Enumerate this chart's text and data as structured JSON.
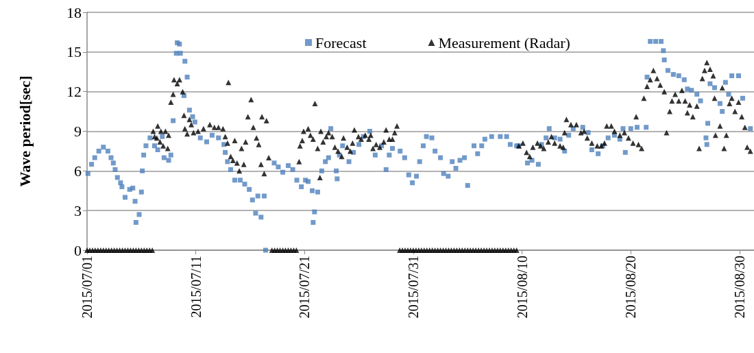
{
  "chart_data": {
    "type": "scatter",
    "ylabel": "Wave period[sec]",
    "xlim": [
      "2015-07-01",
      "2015-08-31T08:00"
    ],
    "xticks": [
      {
        "value": "2015-07-01",
        "label": "2015/07/01"
      },
      {
        "value": "2015-07-11",
        "label": "2015/07/11"
      },
      {
        "value": "2015-07-21",
        "label": "2015/07/21"
      },
      {
        "value": "2015-07-31",
        "label": "2015/07/31"
      },
      {
        "value": "2015-08-10",
        "label": "2015/08/10"
      },
      {
        "value": "2015-08-20",
        "label": "2015/08/20"
      },
      {
        "value": "2015-08-30",
        "label": "2015/08/30"
      }
    ],
    "ylim": [
      0,
      18
    ],
    "yticks": [
      0,
      3,
      6,
      9,
      12,
      15,
      18
    ],
    "grid": "y",
    "legend": "top",
    "series": [
      {
        "name": "Forecast",
        "color": "#4f81bd",
        "marker": "square",
        "x": [
          "2015-07-01T02:00",
          "2015-07-01T10:00",
          "2015-07-01T17:00",
          "2015-07-02T02:00",
          "2015-07-02T12:00",
          "2015-07-02T22:00",
          "2015-07-03T05:00",
          "2015-07-03T10:00",
          "2015-07-03T14:00",
          "2015-07-03T19:00",
          "2015-07-04T02:00",
          "2015-07-04T05:00",
          "2015-07-04T12:00",
          "2015-07-04T22:00",
          "2015-07-05T05:00",
          "2015-07-05T10:00",
          "2015-07-05T12:00",
          "2015-07-05T19:00",
          "2015-07-06T00:00",
          "2015-07-06T02:00",
          "2015-07-06T05:00",
          "2015-07-06T10:00",
          "2015-07-06T19:00",
          "2015-07-07T05:00",
          "2015-07-07T12:00",
          "2015-07-07T22:00",
          "2015-07-08T02:00",
          "2015-07-08T12:00",
          "2015-07-08T17:00",
          "2015-07-08T22:00",
          "2015-07-09T05:00",
          "2015-07-09T07:00",
          "2015-07-09T12:00",
          "2015-07-09T14:00",
          "2015-07-09T22:00",
          "2015-07-10T00:00",
          "2015-07-10T05:00",
          "2015-07-10T10:00",
          "2015-07-10T17:00",
          "2015-07-10T22:00",
          "2015-07-11T10:00",
          "2015-07-12T00:00",
          "2015-07-12T12:00",
          "2015-07-13T02:00",
          "2015-07-13T14:00",
          "2015-07-13T17:00",
          "2015-07-13T22:00",
          "2015-07-14T05:00",
          "2015-07-14T14:00",
          "2015-07-15T02:00",
          "2015-07-15T12:00",
          "2015-07-15T22:00",
          "2015-07-16T05:00",
          "2015-07-16T12:00",
          "2015-07-16T17:00",
          "2015-07-17T00:00",
          "2015-07-17T07:00",
          "2015-07-17T10:00",
          "2015-07-18T05:00",
          "2015-07-18T14:00",
          "2015-07-19T00:00",
          "2015-07-19T12:00",
          "2015-07-19T22:00",
          "2015-07-20T07:00",
          "2015-07-20T17:00",
          "2015-07-21T02:00",
          "2015-07-21T08:00",
          "2015-07-21T17:00",
          "2015-07-21T19:00",
          "2015-07-21T22:00",
          "2015-07-22T05:00",
          "2015-07-22T14:00",
          "2015-07-22T22:00",
          "2015-07-23T05:00",
          "2015-07-23T10:00",
          "2015-07-23T22:00",
          "2015-07-24T00:00",
          "2015-07-24T05:00",
          "2015-07-24T12:00",
          "2015-07-25T02:00",
          "2015-07-25T12:00",
          "2015-07-26T00:00",
          "2015-07-26T10:00",
          "2015-07-27T00:00",
          "2015-07-27T12:00",
          "2015-07-28T02:00",
          "2015-07-28T12:00",
          "2015-07-28T19:00",
          "2015-07-29T02:00",
          "2015-07-29T19:00",
          "2015-07-30T05:00",
          "2015-07-30T14:00",
          "2015-07-30T22:00",
          "2015-07-31T07:00",
          "2015-07-31T14:00",
          "2015-07-31T22:00",
          "2015-08-01T05:00",
          "2015-08-01T17:00",
          "2015-08-02T00:00",
          "2015-08-02T12:00",
          "2015-08-02T19:00",
          "2015-08-03T05:00",
          "2015-08-03T14:00",
          "2015-08-03T22:00",
          "2015-08-04T07:00",
          "2015-08-04T17:00",
          "2015-08-05T00:00",
          "2015-08-05T14:00",
          "2015-08-05T22:00",
          "2015-08-06T07:00",
          "2015-08-06T14:00",
          "2015-08-07T05:00",
          "2015-08-08T00:00",
          "2015-08-08T14:00",
          "2015-08-08T22:00",
          "2015-08-09T12:00",
          "2015-08-09T17:00",
          "2015-08-10T12:00",
          "2015-08-10T22:00",
          "2015-08-11T12:00",
          "2015-08-11T19:00",
          "2015-08-12T05:00",
          "2015-08-12T12:00",
          "2015-08-13T00:00",
          "2015-08-13T12:00",
          "2015-08-13T22:00",
          "2015-08-14T07:00",
          "2015-08-14T17:00",
          "2015-08-15T14:00",
          "2015-08-16T02:00",
          "2015-08-16T10:00",
          "2015-08-17T00:00",
          "2015-08-17T10:00",
          "2015-08-17T22:00",
          "2015-08-18T12:00",
          "2015-08-19T00:00",
          "2015-08-19T07:00",
          "2015-08-19T12:00",
          "2015-08-20T00:00",
          "2015-08-20T14:00",
          "2015-08-21T10:00",
          "2015-08-21T12:00",
          "2015-08-21T19:00",
          "2015-08-22T07:00",
          "2015-08-22T19:00",
          "2015-08-23T00:00",
          "2015-08-23T02:00",
          "2015-08-23T10:00",
          "2015-08-23T22:00",
          "2015-08-24T10:00",
          "2015-08-24T22:00",
          "2015-08-25T05:00",
          "2015-08-25T14:00",
          "2015-08-26T02:00",
          "2015-08-26T10:00",
          "2015-08-26T22:00",
          "2015-08-27T00:00",
          "2015-08-27T02:00",
          "2015-08-27T07:00",
          "2015-08-27T17:00",
          "2015-08-28T05:00",
          "2015-08-28T10:00",
          "2015-08-28T17:00",
          "2015-08-29T00:00",
          "2015-08-29T07:00",
          "2015-08-29T22:00",
          "2015-08-30T07:00",
          "2015-08-31T00:00"
        ],
        "values": [
          5.8,
          6.5,
          7.0,
          7.5,
          7.8,
          7.5,
          7.0,
          6.6,
          6.1,
          5.5,
          5.1,
          4.8,
          4.0,
          4.6,
          4.7,
          3.7,
          2.1,
          2.7,
          4.4,
          6.0,
          7.2,
          7.9,
          8.5,
          7.9,
          7.6,
          8.6,
          7.0,
          6.8,
          7.2,
          9.8,
          14.9,
          15.7,
          15.6,
          14.9,
          11.7,
          14.3,
          13.1,
          10.6,
          10.1,
          9.7,
          8.5,
          8.2,
          8.7,
          8.5,
          8.0,
          7.4,
          6.7,
          6.1,
          5.3,
          5.3,
          5.0,
          4.6,
          3.8,
          2.8,
          4.1,
          2.5,
          4.1,
          0,
          6.6,
          6.3,
          5.9,
          6.4,
          6.1,
          5.3,
          4.8,
          5.3,
          5.2,
          4.5,
          2.1,
          2.9,
          4.4,
          6.0,
          6.7,
          7.0,
          9.2,
          6.0,
          5.4,
          7.2,
          7.9,
          6.7,
          7.4,
          8.0,
          8.6,
          9.0,
          7.2,
          7.9,
          6.1,
          7.2,
          7.7,
          7.5,
          7.0,
          5.7,
          5.1,
          5.6,
          6.7,
          7.9,
          8.6,
          8.5,
          7.5,
          7.0,
          5.8,
          5.6,
          6.7,
          6.2,
          6.8,
          7.0,
          4.9,
          7.9,
          7.3,
          7.9,
          8.4,
          8.6,
          8.6,
          8.6,
          8.0,
          7.9,
          7.9,
          6.6,
          6.8,
          6.5,
          8.0,
          8.5,
          9.2,
          8.5,
          8.4,
          7.5,
          8.7,
          9.2,
          9.3,
          8.9,
          7.6,
          7.3,
          7.9,
          8.5,
          8.7,
          8.4,
          9.2,
          7.4,
          9.2,
          9.3,
          9.3,
          13.1,
          15.8,
          15.8,
          15.8,
          15.1,
          14.4,
          13.6,
          13.3,
          13.2,
          12.9,
          12.2,
          12.1,
          11.8,
          11.3,
          8.5,
          8.0,
          9.6,
          12.6,
          12.3,
          11.1,
          10.5,
          12.7,
          11.8,
          13.2,
          13.2,
          11.5,
          9.2
        ]
      },
      {
        "name": "Measurement (Radar)",
        "color": "#000000",
        "marker": "triangle",
        "x": [
          "2015-07-01T00:00",
          "2015-07-01T06:00",
          "2015-07-01T12:00",
          "2015-07-01T18:00",
          "2015-07-02T00:00",
          "2015-07-02T06:00",
          "2015-07-02T12:00",
          "2015-07-02T18:00",
          "2015-07-03T00:00",
          "2015-07-03T06:00",
          "2015-07-03T12:00",
          "2015-07-03T18:00",
          "2015-07-04T00:00",
          "2015-07-04T06:00",
          "2015-07-04T12:00",
          "2015-07-04T18:00",
          "2015-07-05T00:00",
          "2015-07-05T06:00",
          "2015-07-05T12:00",
          "2015-07-05T18:00",
          "2015-07-06T00:00",
          "2015-07-06T06:00",
          "2015-07-06T12:00",
          "2015-07-06T18:00",
          "2015-07-07T00:00",
          "2015-07-07T02:00",
          "2015-07-07T05:00",
          "2015-07-07T10:00",
          "2015-07-07T12:00",
          "2015-07-07T17:00",
          "2015-07-07T19:00",
          "2015-07-08T00:00",
          "2015-07-08T05:00",
          "2015-07-08T10:00",
          "2015-07-08T12:00",
          "2015-07-08T17:00",
          "2015-07-08T22:00",
          "2015-07-09T00:00",
          "2015-07-09T07:00",
          "2015-07-09T12:00",
          "2015-07-09T19:00",
          "2015-07-09T22:00",
          "2015-07-10T00:00",
          "2015-07-10T05:00",
          "2015-07-10T10:00",
          "2015-07-10T14:00",
          "2015-07-10T19:00",
          "2015-07-11T05:00",
          "2015-07-11T17:00",
          "2015-07-12T07:00",
          "2015-07-12T17:00",
          "2015-07-13T02:00",
          "2015-07-13T12:00",
          "2015-07-13T17:00",
          "2015-07-13T22:00",
          "2015-07-14T00:00",
          "2015-07-14T05:00",
          "2015-07-14T10:00",
          "2015-07-14T14:00",
          "2015-07-14T19:00",
          "2015-07-15T00:00",
          "2015-07-15T05:00",
          "2015-07-15T10:00",
          "2015-07-15T14:00",
          "2015-07-15T19:00",
          "2015-07-16T02:00",
          "2015-07-16T07:00",
          "2015-07-16T14:00",
          "2015-07-16T19:00",
          "2015-07-17T00:00",
          "2015-07-17T02:00",
          "2015-07-17T07:00",
          "2015-07-17T12:00",
          "2015-07-17T17:00",
          "2015-07-18T00:00",
          "2015-07-18T06:00",
          "2015-07-18T12:00",
          "2015-07-18T18:00",
          "2015-07-19T00:00",
          "2015-07-19T06:00",
          "2015-07-19T12:00",
          "2015-07-19T18:00",
          "2015-07-20T00:00",
          "2015-07-20T06:00",
          "2015-07-20T12:00",
          "2015-07-20T14:00",
          "2015-07-20T19:00",
          "2015-07-20T22:00",
          "2015-07-21T08:00",
          "2015-07-21T13:00",
          "2015-07-21T19:00",
          "2015-07-21T23:00",
          "2015-07-22T05:00",
          "2015-07-22T10:00",
          "2015-07-22T12:00",
          "2015-07-22T17:00",
          "2015-07-23T00:00",
          "2015-07-23T05:00",
          "2015-07-23T13:00",
          "2015-07-23T19:00",
          "2015-07-24T02:00",
          "2015-07-24T10:00",
          "2015-07-24T14:00",
          "2015-07-24T22:00",
          "2015-07-25T05:00",
          "2015-07-25T10:00",
          "2015-07-25T14:00",
          "2015-07-25T23:00",
          "2015-07-26T05:00",
          "2015-07-26T14:00",
          "2015-07-26T22:00",
          "2015-07-27T02:00",
          "2015-07-27T07:00",
          "2015-07-27T14:00",
          "2015-07-27T22:00",
          "2015-07-28T07:00",
          "2015-07-28T12:00",
          "2015-07-28T19:00",
          "2015-07-29T02:00",
          "2015-07-29T07:00",
          "2015-07-29T12:00",
          "2015-07-29T18:00",
          "2015-07-30T00:00",
          "2015-07-30T06:00",
          "2015-07-30T12:00",
          "2015-07-30T18:00",
          "2015-07-31T00:00",
          "2015-07-31T06:00",
          "2015-07-31T12:00",
          "2015-07-31T18:00",
          "2015-08-01T00:00",
          "2015-08-01T06:00",
          "2015-08-01T12:00",
          "2015-08-01T18:00",
          "2015-08-02T00:00",
          "2015-08-02T06:00",
          "2015-08-02T12:00",
          "2015-08-02T18:00",
          "2015-08-03T00:00",
          "2015-08-03T06:00",
          "2015-08-03T12:00",
          "2015-08-03T18:00",
          "2015-08-04T00:00",
          "2015-08-04T06:00",
          "2015-08-04T12:00",
          "2015-08-04T18:00",
          "2015-08-05T00:00",
          "2015-08-05T06:00",
          "2015-08-05T12:00",
          "2015-08-05T18:00",
          "2015-08-06T00:00",
          "2015-08-06T06:00",
          "2015-08-06T12:00",
          "2015-08-06T18:00",
          "2015-08-07T00:00",
          "2015-08-07T06:00",
          "2015-08-07T12:00",
          "2015-08-07T18:00",
          "2015-08-08T00:00",
          "2015-08-08T06:00",
          "2015-08-08T12:00",
          "2015-08-08T18:00",
          "2015-08-09T00:00",
          "2015-08-09T06:00",
          "2015-08-09T12:00",
          "2015-08-09T17:00",
          "2015-08-10T02:00",
          "2015-08-10T10:00",
          "2015-08-10T17:00",
          "2015-08-11T00:00",
          "2015-08-11T10:00",
          "2015-08-11T17:00",
          "2015-08-12T00:00",
          "2015-08-12T10:00",
          "2015-08-12T17:00",
          "2015-08-13T00:00",
          "2015-08-13T12:00",
          "2015-08-13T19:00",
          "2015-08-13T22:00",
          "2015-08-14T02:00",
          "2015-08-14T12:00",
          "2015-08-15T00:00",
          "2015-08-15T10:00",
          "2015-08-15T17:00",
          "2015-08-16T00:00",
          "2015-08-16T10:00",
          "2015-08-16T22:00",
          "2015-08-17T07:00",
          "2015-08-17T14:00",
          "2015-08-17T19:00",
          "2015-08-18T05:00",
          "2015-08-18T12:00",
          "2015-08-19T00:00",
          "2015-08-19T10:00",
          "2015-08-19T19:00",
          "2015-08-20T05:00",
          "2015-08-20T12:00",
          "2015-08-20T17:00",
          "2015-08-21T00:00",
          "2015-08-21T05:00",
          "2015-08-21T12:00",
          "2015-08-21T19:00",
          "2015-08-22T02:00",
          "2015-08-22T10:00",
          "2015-08-22T17:00",
          "2015-08-23T02:00",
          "2015-08-23T07:00",
          "2015-08-23T14:00",
          "2015-08-23T19:00",
          "2015-08-24T02:00",
          "2015-08-24T10:00",
          "2015-08-24T17:00",
          "2015-08-25T00:00",
          "2015-08-25T05:00",
          "2015-08-25T10:00",
          "2015-08-25T17:00",
          "2015-08-26T02:00",
          "2015-08-26T07:00",
          "2015-08-26T14:00",
          "2015-08-26T19:00",
          "2015-08-27T00:00",
          "2015-08-27T07:00",
          "2015-08-27T14:00",
          "2015-08-27T17:00",
          "2015-08-27T19:00",
          "2015-08-28T05:00",
          "2015-08-28T10:00",
          "2015-08-28T14:00",
          "2015-08-28T19:00",
          "2015-08-29T02:00",
          "2015-08-29T07:00",
          "2015-08-29T14:00",
          "2015-08-29T22:00",
          "2015-08-30T05:00",
          "2015-08-30T12:00",
          "2015-08-30T17:00",
          "2015-08-31T00:00"
        ],
        "values": [
          0,
          0,
          0,
          0,
          0,
          0,
          0,
          0,
          0,
          0,
          0,
          0,
          0,
          0,
          0,
          0,
          0,
          0,
          0,
          0,
          0,
          0,
          0,
          0,
          0,
          9.0,
          8.6,
          8.5,
          9.4,
          8.2,
          9.0,
          7.9,
          9.0,
          7.7,
          8.7,
          11.2,
          11.8,
          12.9,
          12.6,
          12.9,
          12.0,
          10.2,
          9.2,
          8.8,
          9.9,
          9.5,
          8.9,
          9.0,
          9.2,
          9.5,
          9.3,
          9.3,
          9.2,
          8.6,
          8.1,
          12.7,
          7.1,
          6.8,
          8.3,
          6.6,
          6.0,
          7.7,
          6.5,
          8.2,
          10.1,
          11.4,
          9.3,
          8.5,
          8.0,
          6.5,
          10.1,
          5.8,
          9.8,
          7.0,
          0,
          0,
          0,
          0,
          0,
          0,
          0,
          0,
          0,
          0,
          6.7,
          7.9,
          8.3,
          9.0,
          9.2,
          8.7,
          8.4,
          11.1,
          7.7,
          5.5,
          9.0,
          8.2,
          8.6,
          8.9,
          8.6,
          7.8,
          7.5,
          7.1,
          8.5,
          7.8,
          7.5,
          8.1,
          9.1,
          8.6,
          8.4,
          8.7,
          8.4,
          8.7,
          7.7,
          8.0,
          7.8,
          8.2,
          9.1,
          8.4,
          8.4,
          8.9,
          9.4,
          0,
          0,
          0,
          0,
          0,
          0,
          0,
          0,
          0,
          0,
          0,
          0,
          0,
          0,
          0,
          0,
          0,
          0,
          0,
          0,
          0,
          0,
          0,
          0,
          0,
          0,
          0,
          0,
          0,
          0,
          0,
          0,
          0,
          0,
          0,
          0,
          0,
          0,
          0,
          0,
          0,
          0,
          0,
          0,
          7.9,
          8.1,
          7.4,
          7.1,
          7.8,
          8.1,
          7.9,
          7.7,
          8.2,
          8.6,
          8.1,
          7.9,
          7.8,
          8.9,
          9.9,
          9.5,
          9.5,
          8.9,
          9.0,
          8.5,
          8.1,
          7.9,
          7.9,
          8.1,
          9.4,
          9.4,
          9.0,
          8.7,
          8.9,
          8.5,
          8.1,
          10.1,
          8.0,
          7.7,
          11.5,
          12.4,
          12.9,
          13.6,
          13.0,
          12.5,
          12.0,
          8.9,
          10.5,
          11.3,
          11.8,
          11.3,
          12.1,
          11.3,
          10.4,
          11.0,
          10.1,
          10.9,
          7.7,
          13.0,
          13.6,
          14.2,
          13.7,
          13.2,
          11.5,
          8.7,
          9.4,
          12.3,
          7.7,
          8.7,
          11.1,
          11.5,
          10.5,
          11.2,
          10.1,
          9.3,
          7.8,
          7.5
        ]
      }
    ]
  }
}
